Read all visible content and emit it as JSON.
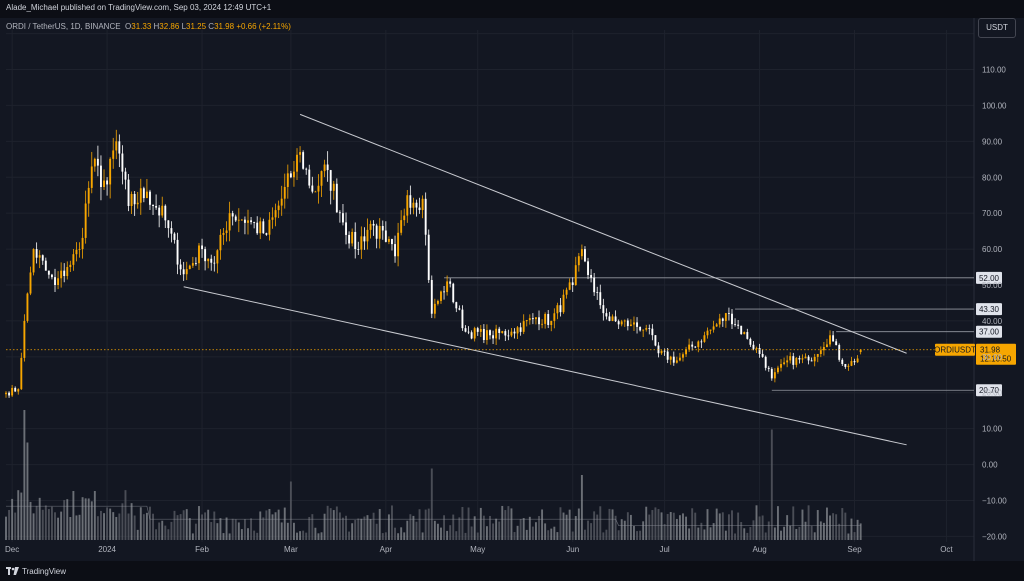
{
  "header": {
    "publisher": "Alade_Michael published on TradingView.com, Sep 03, 2024 12:49 UTC+1"
  },
  "legend": {
    "symbol": "ORDI / TetherUS, 1D, BINANCE",
    "open_label": "O",
    "open": "31.33",
    "high_label": "H",
    "high": "32.86",
    "low_label": "L",
    "low": "31.25",
    "close_label": "C",
    "close": "31.98",
    "change": "+0.66 (+2.11%)"
  },
  "currency_button": "USDT",
  "footer": {
    "brand": "TradingView"
  },
  "colors": {
    "bull": "#f7a600",
    "bear": "#ffffff",
    "background": "#131722",
    "level": "#9598a1"
  },
  "chart_data": {
    "type": "candlestick",
    "symbol": "ORDIUSDT",
    "y_ticks": [
      "120.00",
      "110.00",
      "100.00",
      "90.00",
      "80.00",
      "70.00",
      "60.00",
      "50.00",
      "40.00",
      "30.00",
      "20.00",
      "10.00",
      "0.00",
      "−10.00",
      "−20.00"
    ],
    "y_tick_values": [
      120,
      110,
      100,
      90,
      80,
      70,
      60,
      50,
      40,
      30,
      20,
      10,
      0,
      -10,
      -20
    ],
    "ylim": [
      -21,
      121
    ],
    "x_ticks": [
      {
        "label": "Dec",
        "date": "2023-12-01"
      },
      {
        "label": "2024",
        "date": "2024-01-01"
      },
      {
        "label": "Feb",
        "date": "2024-02-01"
      },
      {
        "label": "Mar",
        "date": "2024-03-01"
      },
      {
        "label": "Apr",
        "date": "2024-04-01"
      },
      {
        "label": "May",
        "date": "2024-05-01"
      },
      {
        "label": "Jun",
        "date": "2024-06-01"
      },
      {
        "label": "Jul",
        "date": "2024-07-01"
      },
      {
        "label": "Aug",
        "date": "2024-08-01"
      },
      {
        "label": "Sep",
        "date": "2024-09-01"
      },
      {
        "label": "Oct",
        "date": "2024-10-01"
      }
    ],
    "xlim": [
      "2023-11-29",
      "2024-10-10"
    ],
    "anchors": [
      {
        "date": "2023-11-29",
        "price": 20
      },
      {
        "date": "2023-12-03",
        "price": 21
      },
      {
        "date": "2023-12-05",
        "price": 40
      },
      {
        "date": "2023-12-08",
        "price": 60
      },
      {
        "date": "2023-12-12",
        "price": 54
      },
      {
        "date": "2023-12-15",
        "price": 50
      },
      {
        "date": "2023-12-19",
        "price": 55
      },
      {
        "date": "2023-12-23",
        "price": 60
      },
      {
        "date": "2023-12-27",
        "price": 83
      },
      {
        "date": "2024-01-01",
        "price": 78
      },
      {
        "date": "2024-01-04",
        "price": 90
      },
      {
        "date": "2024-01-08",
        "price": 72
      },
      {
        "date": "2024-01-14",
        "price": 76
      },
      {
        "date": "2024-01-20",
        "price": 68
      },
      {
        "date": "2024-01-26",
        "price": 53
      },
      {
        "date": "2024-02-01",
        "price": 60
      },
      {
        "date": "2024-02-05",
        "price": 56
      },
      {
        "date": "2024-02-10",
        "price": 70
      },
      {
        "date": "2024-02-16",
        "price": 68
      },
      {
        "date": "2024-02-22",
        "price": 64
      },
      {
        "date": "2024-03-01",
        "price": 80
      },
      {
        "date": "2024-03-04",
        "price": 87
      },
      {
        "date": "2024-03-08",
        "price": 76
      },
      {
        "date": "2024-03-13",
        "price": 82
      },
      {
        "date": "2024-03-17",
        "price": 70
      },
      {
        "date": "2024-03-22",
        "price": 60
      },
      {
        "date": "2024-03-27",
        "price": 67
      },
      {
        "date": "2024-04-01",
        "price": 62
      },
      {
        "date": "2024-04-04",
        "price": 58
      },
      {
        "date": "2024-04-08",
        "price": 75
      },
      {
        "date": "2024-04-13",
        "price": 74
      },
      {
        "date": "2024-04-16",
        "price": 42
      },
      {
        "date": "2024-04-21",
        "price": 51
      },
      {
        "date": "2024-04-27",
        "price": 37
      },
      {
        "date": "2024-05-05",
        "price": 36
      },
      {
        "date": "2024-05-12",
        "price": 37
      },
      {
        "date": "2024-05-20",
        "price": 41
      },
      {
        "date": "2024-05-25",
        "price": 40
      },
      {
        "date": "2024-06-01",
        "price": 50
      },
      {
        "date": "2024-06-04",
        "price": 60
      },
      {
        "date": "2024-06-08",
        "price": 48
      },
      {
        "date": "2024-06-13",
        "price": 40
      },
      {
        "date": "2024-06-20",
        "price": 39
      },
      {
        "date": "2024-06-25",
        "price": 38
      },
      {
        "date": "2024-06-29",
        "price": 31
      },
      {
        "date": "2024-07-05",
        "price": 29
      },
      {
        "date": "2024-07-14",
        "price": 36
      },
      {
        "date": "2024-07-22",
        "price": 42
      },
      {
        "date": "2024-07-28",
        "price": 35
      },
      {
        "date": "2024-08-02",
        "price": 30
      },
      {
        "date": "2024-08-05",
        "price": 24
      },
      {
        "date": "2024-08-10",
        "price": 29
      },
      {
        "date": "2024-08-17",
        "price": 29
      },
      {
        "date": "2024-08-24",
        "price": 36
      },
      {
        "date": "2024-08-28",
        "price": 28
      },
      {
        "date": "2024-09-01",
        "price": 28.5
      },
      {
        "date": "2024-09-03",
        "price": 31.98
      }
    ],
    "levels": [
      {
        "label": "52.00",
        "value": 52.0,
        "from": "2024-04-20"
      },
      {
        "label": "43.30",
        "value": 43.3,
        "from": "2024-07-24"
      },
      {
        "label": "37.00",
        "value": 37.0,
        "from": "2024-08-26"
      },
      {
        "label": "20.70",
        "value": 20.7,
        "from": "2024-08-05"
      }
    ],
    "trendlines": [
      {
        "from": {
          "date": "2024-03-04",
          "price": 97.5
        },
        "to": {
          "date": "2024-09-18",
          "price": 31
        }
      },
      {
        "from": {
          "date": "2024-01-26",
          "price": 49.5
        },
        "to": {
          "date": "2024-09-18",
          "price": 5.5
        }
      }
    ],
    "last_price": {
      "symbol": "ORDIUSDT",
      "value": 31.98,
      "label": "31.98",
      "countdown": "12:10:50"
    },
    "volume": {
      "spikes": [
        {
          "date": "2023-12-05",
          "level": 1.0
        },
        {
          "date": "2023-12-06",
          "level": 0.75
        },
        {
          "date": "2024-03-01",
          "level": 0.45
        },
        {
          "date": "2024-04-16",
          "level": 0.55
        },
        {
          "date": "2024-06-04",
          "level": 0.5
        },
        {
          "date": "2024-08-05",
          "level": 0.85
        }
      ]
    }
  }
}
